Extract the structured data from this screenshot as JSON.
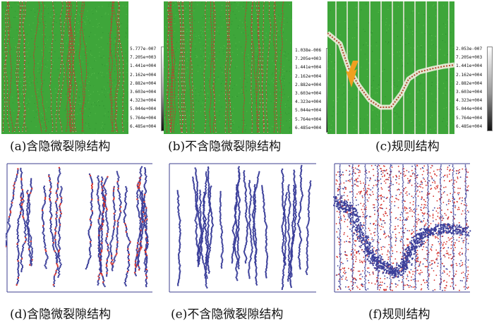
{
  "colors": {
    "green_bg": "#3ea63a",
    "crack_red": "#b4452f",
    "crack_white": "#f2eee0",
    "particle_blue": "#3b3f9a",
    "particle_red": "#d5302a",
    "arrow": "#f0a020"
  },
  "panels": {
    "a": {
      "caption": "(a)含隐微裂隙结构"
    },
    "b": {
      "caption": "(b)不含隐微裂隙结构"
    },
    "c": {
      "caption": "(c)规则结构"
    },
    "d": {
      "caption": "(d)含隐微裂隙结构"
    },
    "e": {
      "caption": "(e)不含隐微裂隙结构"
    },
    "f": {
      "caption": "(f)规则结构"
    }
  },
  "scales": {
    "a": [
      "5.777e-007",
      "7.205e+003",
      "1.441e+004",
      "2.162e+004",
      "2.882e+004",
      "3.603e+004",
      "4.323e+004",
      "5.044e+004",
      "5.764e+004",
      "6.485e+004"
    ],
    "b": [
      "1.038e-006",
      "7.205e+003",
      "1.441e+004",
      "2.162e+004",
      "2.882e+004",
      "3.603e+004",
      "4.323e+004",
      "5.044e+004",
      "5.764e+004",
      "6.485e+004"
    ],
    "c": [
      "2.053e-007",
      "7.205e+003",
      "1.441e+004",
      "2.162e+004",
      "2.882e+004",
      "3.603e+004",
      "4.323e+004",
      "5.044e+004",
      "5.764e+004",
      "6.485e+004"
    ]
  }
}
